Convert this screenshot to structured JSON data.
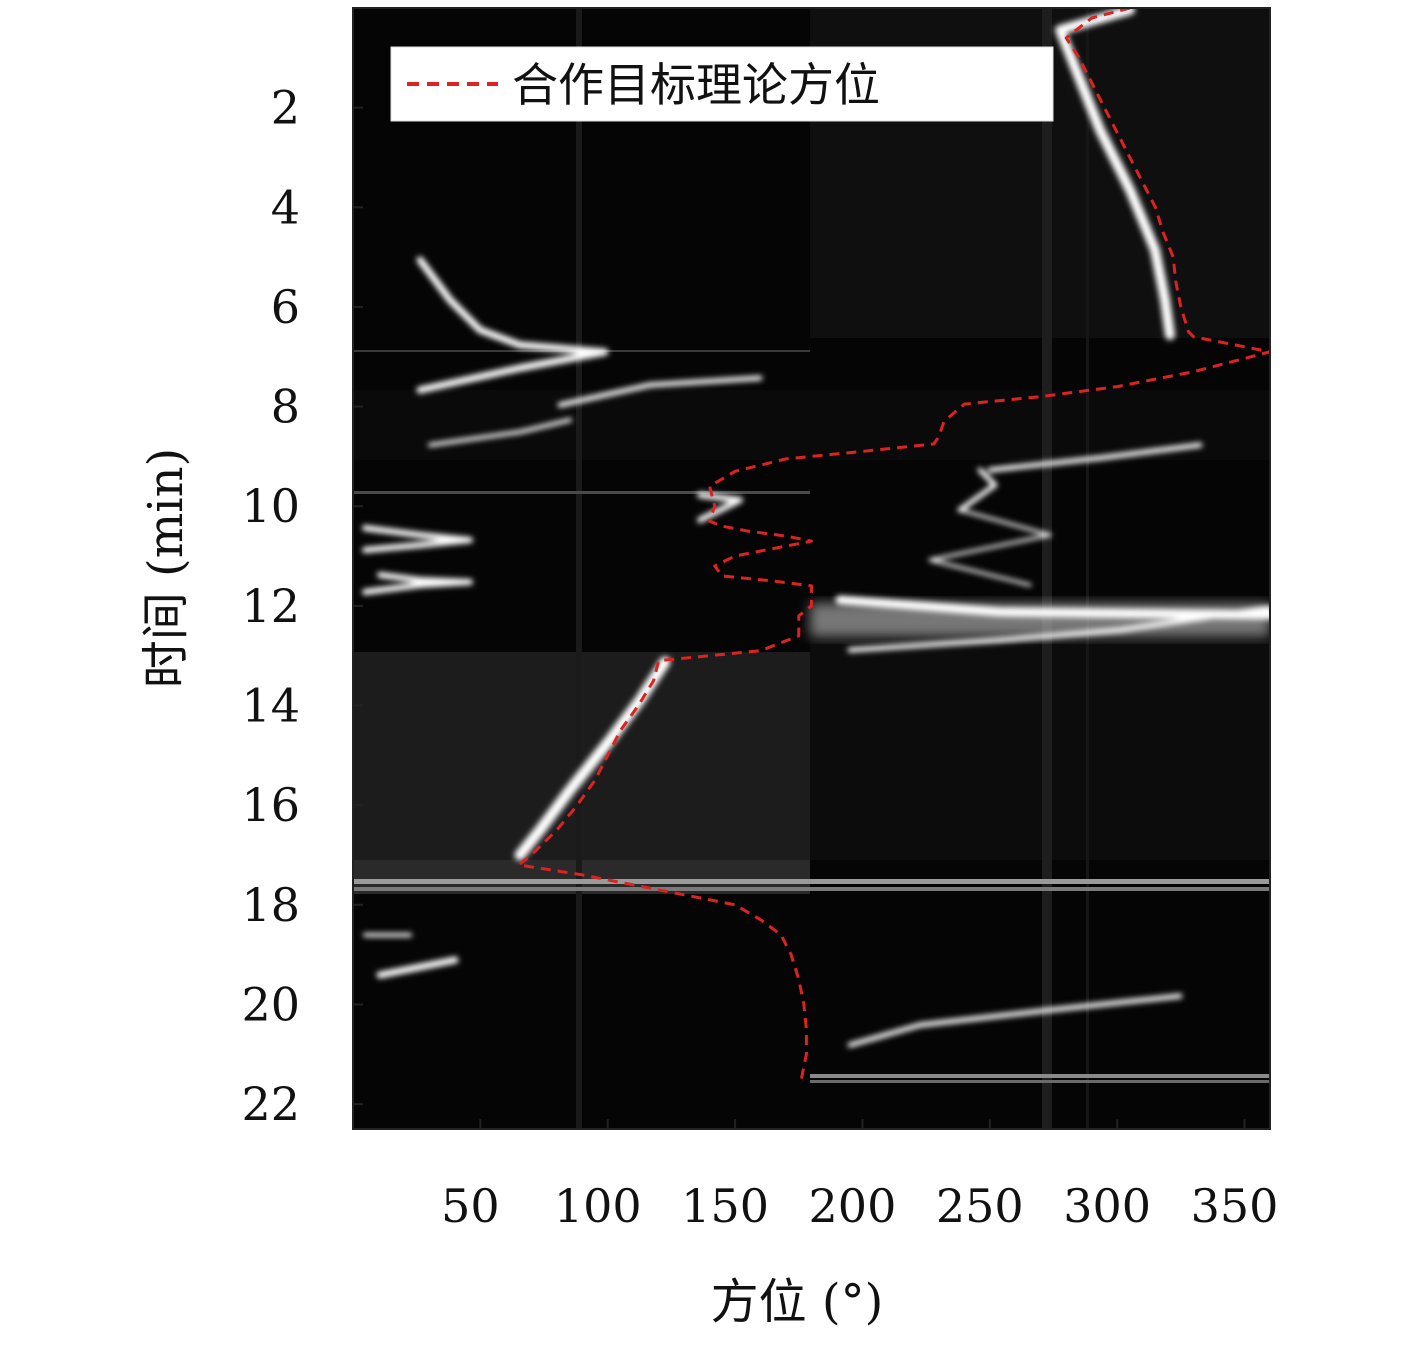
{
  "chart_data": {
    "type": "heatmap",
    "xlabel": "方位 (°)",
    "ylabel": "时间 (min)",
    "xlim": [
      0,
      360
    ],
    "ylim": [
      0,
      22.5
    ],
    "y_reversed": true,
    "xticks": [
      50,
      100,
      150,
      200,
      250,
      300,
      350
    ],
    "yticks": [
      2,
      4,
      6,
      8,
      10,
      12,
      14,
      16,
      18,
      20,
      22
    ],
    "legend": {
      "placement": "top-left",
      "entries": [
        "合作目标理论方位"
      ]
    },
    "colormap": "gray",
    "series": [
      {
        "name": "合作目标理论方位",
        "style": "dashed",
        "color": "#dd2222",
        "x": [
          305,
          290,
          280,
          285,
          290,
          295,
          300,
          305,
          310,
          315,
          318,
          322,
          323,
          325,
          328,
          330,
          360,
          330,
          300,
          270,
          240,
          232,
          230,
          228,
          200,
          170,
          150,
          140,
          142,
          140,
          145,
          155,
          170,
          180,
          150,
          142,
          145,
          165,
          180,
          180,
          175,
          175,
          160,
          140,
          120,
          118,
          112,
          105,
          100,
          95,
          88,
          80,
          70,
          65,
          90,
          110,
          130,
          150,
          160,
          168,
          172,
          175,
          177,
          178,
          178,
          176
        ],
        "y": [
          0.0,
          0.2,
          0.6,
          1.0,
          1.5,
          2.0,
          2.5,
          3.0,
          3.5,
          4.0,
          4.5,
          5.0,
          5.5,
          6.0,
          6.5,
          6.6,
          6.9,
          7.3,
          7.6,
          7.8,
          7.95,
          8.3,
          8.6,
          8.75,
          8.9,
          9.05,
          9.3,
          9.6,
          10.0,
          10.3,
          10.4,
          10.5,
          10.6,
          10.7,
          11.0,
          11.2,
          11.4,
          11.5,
          11.6,
          12.0,
          12.2,
          12.6,
          12.9,
          13.0,
          13.1,
          13.5,
          14.0,
          14.5,
          15.0,
          15.5,
          16.0,
          16.5,
          17.0,
          17.2,
          17.4,
          17.6,
          17.8,
          18.0,
          18.3,
          18.6,
          19.0,
          19.5,
          20.0,
          20.5,
          21.0,
          21.5
        ]
      }
    ]
  }
}
